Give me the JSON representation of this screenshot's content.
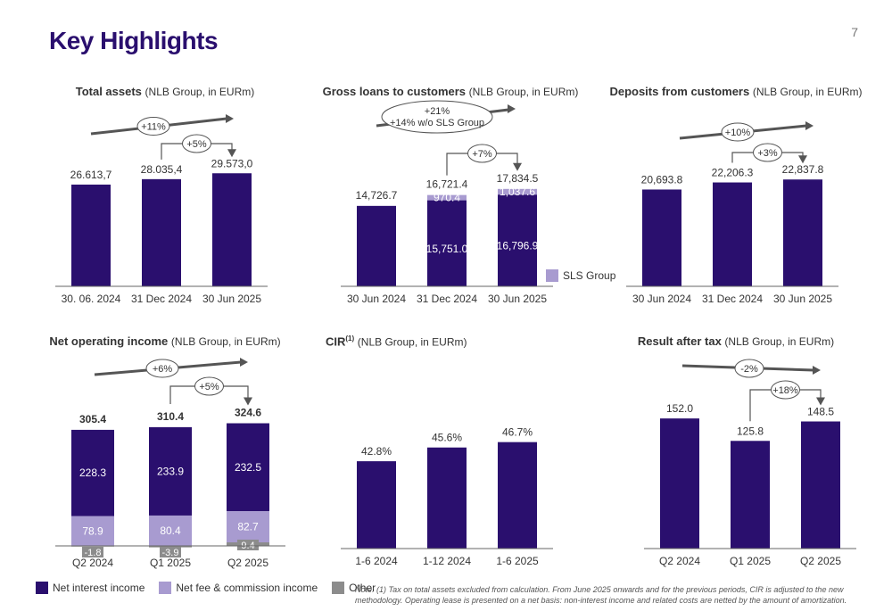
{
  "page": {
    "title": "Key Highlights",
    "number": "7"
  },
  "colors": {
    "navy": "#2a0f6e",
    "lavender": "#a89bd0",
    "gray": "#8c8c8c",
    "arrow": "#555555"
  },
  "legend": {
    "nii": "Net interest income",
    "nfc": "Net fee & commission income",
    "other": "Other"
  },
  "note": "Note: (1) Tax on total assets excluded from calculation. From June 2025 onwards and for the previous periods, CIR is adjusted to the new methodology. Operating lease is presented on a net basis: non-interest income and related costs are netted by the amount of amortization.",
  "chart_data": [
    {
      "id": "total-assets",
      "type": "bar",
      "title": "Total assets",
      "subtitle": "(NLB Group, in EURm)",
      "categories": [
        "30. 06. 2024",
        "31 Dec 2024",
        "30 Jun 2025"
      ],
      "values": [
        26613.7,
        28035.4,
        29573.0
      ],
      "value_labels": [
        "26.613,7",
        "28.035,4",
        "29.573,0"
      ],
      "ylim": [
        0,
        35000
      ],
      "growth_long": "+11%",
      "growth_short": "+5%"
    },
    {
      "id": "gross-loans",
      "type": "bar",
      "title": "Gross loans to customers",
      "subtitle": "(NLB Group, in EURm)",
      "categories": [
        "30 Jun 2024",
        "31 Dec 2024",
        "30 Jun 2025"
      ],
      "series": [
        {
          "name": "",
          "values": [
            14726.7,
            15751.0,
            16796.9
          ],
          "labels": [
            "",
            "15,751.0",
            "16,796.9"
          ]
        },
        {
          "name": "SLS Group",
          "values": [
            0,
            970.4,
            1037.6
          ],
          "labels": [
            "",
            "970.4",
            "1,037.6"
          ]
        }
      ],
      "totals": [
        "14,726.7",
        "16,721.4",
        "17,834.5"
      ],
      "ylim": [
        0,
        24500
      ],
      "growth_long_1": "+21%",
      "growth_long_2": "+14% w/o SLS Group",
      "growth_short": "+7%"
    },
    {
      "id": "deposits",
      "type": "bar",
      "title": "Deposits from customers",
      "subtitle": "(NLB Group, in EURm)",
      "categories": [
        "30 Jun 2024",
        "31 Dec 2024",
        "30 Jun 2025"
      ],
      "values": [
        20693.8,
        22206.3,
        22837.8
      ],
      "value_labels": [
        "20,693.8",
        "22,206.3",
        "22,837.8"
      ],
      "ylim": [
        0,
        28600
      ],
      "growth_long": "+10%",
      "growth_short": "+3%"
    },
    {
      "id": "noi",
      "type": "bar",
      "title": "Net operating income",
      "subtitle": "(NLB Group, in EURm)",
      "categories": [
        "Q2 2024",
        "Q1 2025",
        "Q2 2025"
      ],
      "series": [
        {
          "name": "Net interest income",
          "values": [
            228.3,
            233.9,
            232.5
          ]
        },
        {
          "name": "Net fee & commission income",
          "values": [
            78.9,
            80.4,
            82.7
          ]
        },
        {
          "name": "Other",
          "values": [
            -1.8,
            -3.9,
            9.4
          ]
        }
      ],
      "value_labels_nii": [
        "228.3",
        "233.9",
        "232.5"
      ],
      "value_labels_nfc": [
        "78.9",
        "80.4",
        "82.7"
      ],
      "value_labels_other": [
        "-1.8",
        "-3.9",
        "9.4"
      ],
      "totals": [
        "305.4",
        "310.4",
        "324.6"
      ],
      "ylim": [
        0,
        425
      ],
      "growth_long": "+6%",
      "growth_short": "+5%"
    },
    {
      "id": "cir",
      "type": "bar",
      "title": "CIR",
      "title_sup": "(1)",
      "subtitle": "(NLB Group, in EURm)",
      "categories": [
        "1-6 2024",
        "1-12 2024",
        "1-6 2025"
      ],
      "values": [
        42.8,
        45.6,
        46.7
      ],
      "value_labels": [
        "42.8%",
        "45.6%",
        "46.7%"
      ],
      "ylim": [
        25,
        55
      ]
    },
    {
      "id": "result",
      "type": "bar",
      "title": "Result after tax",
      "subtitle": "(NLB Group, in EURm)",
      "categories": [
        "Q2 2024",
        "Q1 2025",
        "Q2 2025"
      ],
      "values": [
        152.0,
        125.8,
        148.5
      ],
      "value_labels": [
        "152.0",
        "125.8",
        "148.5"
      ],
      "ylim": [
        0,
        198
      ],
      "growth_long": "-2%",
      "growth_short": "+18%"
    }
  ]
}
